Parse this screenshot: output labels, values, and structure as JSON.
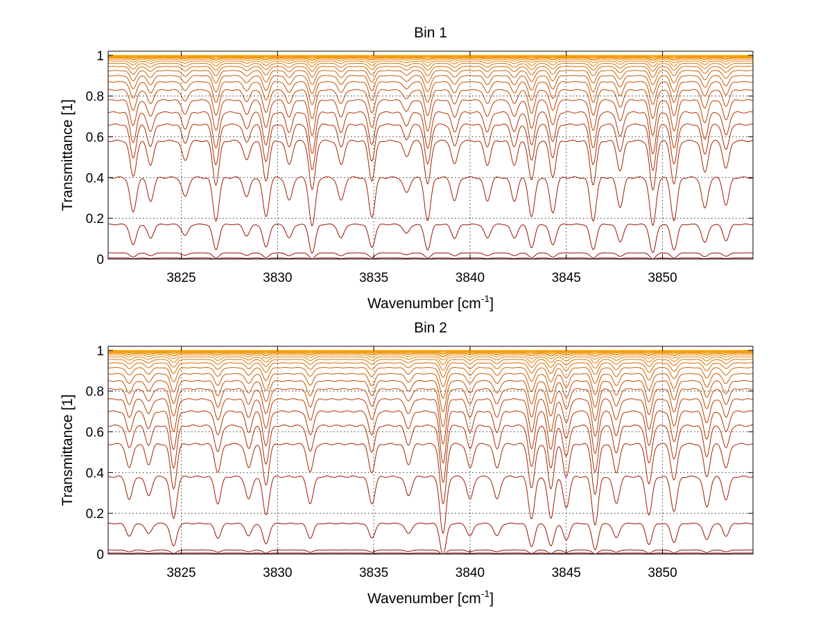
{
  "chart_data": [
    {
      "type": "line",
      "title": "Bin 1",
      "xlabel": "Wavenumber [cm",
      "xlabel_sup": "-1",
      "xlabel_end": "]",
      "ylabel": "Transmittance [1]",
      "xlim": [
        3821.2,
        3854.7
      ],
      "ylim": [
        0,
        1.02
      ],
      "xticks": [
        3825,
        3830,
        3835,
        3840,
        3845,
        3850
      ],
      "xtick_labels": [
        "3825",
        "3830",
        "3835",
        "3840",
        "3845",
        "3850"
      ],
      "yticks": [
        0,
        0.2,
        0.4,
        0.6,
        0.8,
        1
      ],
      "ytick_labels": [
        "0",
        "0.2",
        "0.4",
        "0.6",
        "0.8",
        "1"
      ],
      "grid": true,
      "color_range": [
        "#8b0000",
        "#ffa500"
      ],
      "series_baselines": [
        0.005,
        0.03,
        0.17,
        0.4,
        0.58,
        0.66,
        0.72,
        0.78,
        0.83,
        0.87,
        0.9,
        0.925,
        0.945,
        0.96,
        0.972,
        0.981,
        0.988,
        0.993,
        0.997,
        0.999
      ],
      "absorption_lines": [
        {
          "x": 3822.5,
          "depth": 0.18
        },
        {
          "x": 3823.4,
          "depth": 0.12
        },
        {
          "x": 3825.2,
          "depth": 0.1
        },
        {
          "x": 3826.8,
          "depth": 0.22
        },
        {
          "x": 3828.4,
          "depth": 0.1
        },
        {
          "x": 3829.4,
          "depth": 0.2
        },
        {
          "x": 3830.6,
          "depth": 0.12
        },
        {
          "x": 3831.8,
          "depth": 0.25
        },
        {
          "x": 3833.3,
          "depth": 0.12
        },
        {
          "x": 3834.9,
          "depth": 0.2
        },
        {
          "x": 3836.7,
          "depth": 0.08
        },
        {
          "x": 3837.8,
          "depth": 0.22
        },
        {
          "x": 3839.2,
          "depth": 0.12
        },
        {
          "x": 3840.9,
          "depth": 0.12
        },
        {
          "x": 3842.3,
          "depth": 0.12
        },
        {
          "x": 3843.2,
          "depth": 0.2
        },
        {
          "x": 3844.3,
          "depth": 0.18
        },
        {
          "x": 3846.4,
          "depth": 0.22
        },
        {
          "x": 3847.8,
          "depth": 0.15
        },
        {
          "x": 3849.5,
          "depth": 0.25
        },
        {
          "x": 3850.6,
          "depth": 0.22
        },
        {
          "x": 3852.2,
          "depth": 0.16
        },
        {
          "x": 3853.3,
          "depth": 0.14
        }
      ]
    },
    {
      "type": "line",
      "title": "Bin 2",
      "xlabel": "Wavenumber [cm",
      "xlabel_sup": "-1",
      "xlabel_end": "]",
      "ylabel": "Transmittance [1]",
      "xlim": [
        3821.2,
        3854.7
      ],
      "ylim": [
        0,
        1.02
      ],
      "xticks": [
        3825,
        3830,
        3835,
        3840,
        3845,
        3850
      ],
      "xtick_labels": [
        "3825",
        "3830",
        "3835",
        "3840",
        "3845",
        "3850"
      ],
      "yticks": [
        0,
        0.2,
        0.4,
        0.6,
        0.8,
        1
      ],
      "ytick_labels": [
        "0",
        "0.2",
        "0.4",
        "0.6",
        "0.8",
        "1"
      ],
      "grid": true,
      "color_range": [
        "#8b0000",
        "#ffa500"
      ],
      "series_baselines": [
        0.005,
        0.02,
        0.15,
        0.38,
        0.54,
        0.63,
        0.7,
        0.76,
        0.81,
        0.85,
        0.885,
        0.915,
        0.938,
        0.955,
        0.968,
        0.978,
        0.986,
        0.992,
        0.996,
        0.999
      ],
      "absorption_lines": [
        {
          "x": 3822.3,
          "depth": 0.12
        },
        {
          "x": 3823.3,
          "depth": 0.1
        },
        {
          "x": 3824.6,
          "depth": 0.22
        },
        {
          "x": 3826.9,
          "depth": 0.14
        },
        {
          "x": 3828.5,
          "depth": 0.12
        },
        {
          "x": 3829.4,
          "depth": 0.2
        },
        {
          "x": 3831.7,
          "depth": 0.14
        },
        {
          "x": 3834.9,
          "depth": 0.14
        },
        {
          "x": 3836.8,
          "depth": 0.1
        },
        {
          "x": 3838.6,
          "depth": 0.3
        },
        {
          "x": 3840.0,
          "depth": 0.12
        },
        {
          "x": 3841.4,
          "depth": 0.12
        },
        {
          "x": 3843.2,
          "depth": 0.22
        },
        {
          "x": 3844.2,
          "depth": 0.22
        },
        {
          "x": 3845.0,
          "depth": 0.16
        },
        {
          "x": 3846.5,
          "depth": 0.25
        },
        {
          "x": 3847.6,
          "depth": 0.14
        },
        {
          "x": 3849.3,
          "depth": 0.2
        },
        {
          "x": 3850.6,
          "depth": 0.18
        },
        {
          "x": 3852.3,
          "depth": 0.16
        },
        {
          "x": 3853.3,
          "depth": 0.12
        }
      ]
    }
  ]
}
